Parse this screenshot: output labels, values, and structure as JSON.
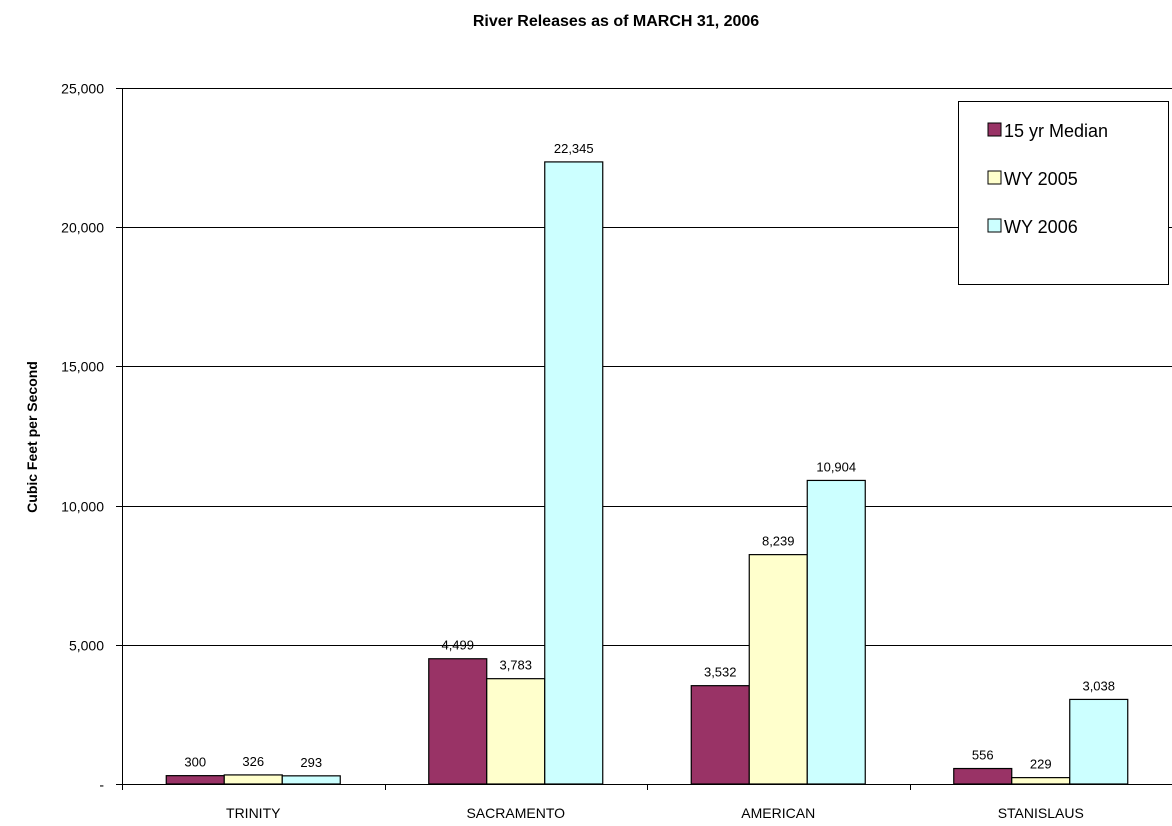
{
  "chart_data": {
    "type": "bar",
    "title": "River Releases as of MARCH 31, 2006",
    "xlabel": "",
    "ylabel": "Cubic Feet per Second",
    "categories": [
      "TRINITY",
      "SACRAMENTO",
      "AMERICAN",
      "STANISLAUS"
    ],
    "series": [
      {
        "name": "15 yr Median",
        "color": "#993366",
        "values": [
          300,
          4499,
          3532,
          556
        ],
        "labels": [
          "300",
          "4,499",
          "3,532",
          "556"
        ]
      },
      {
        "name": "WY 2005",
        "color": "#FFFFCC",
        "values": [
          326,
          3783,
          8239,
          229
        ],
        "labels": [
          "326",
          "3,783",
          "8,239",
          "229"
        ]
      },
      {
        "name": "WY 2006",
        "color": "#CCFFFF",
        "values": [
          293,
          22345,
          10904,
          3038
        ],
        "labels": [
          "293",
          "22,345",
          "10,904",
          "3,038"
        ]
      }
    ],
    "ylim": [
      0,
      25000
    ],
    "yticks": [
      0,
      5000,
      10000,
      15000,
      20000,
      25000
    ],
    "ytick_labels": [
      "-",
      "5,000",
      "10,000",
      "15,000",
      "20,000",
      "25,000"
    ],
    "grid": true,
    "legend_position": "top-right"
  }
}
